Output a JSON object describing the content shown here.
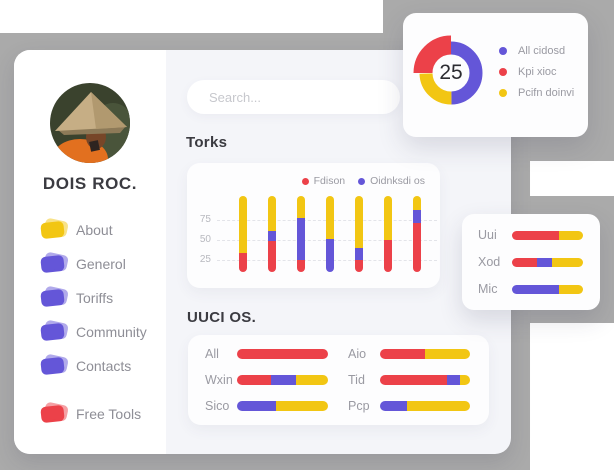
{
  "colors": {
    "red": "#ec4149",
    "purple": "#6456d8",
    "yellow": "#f2c613",
    "gray_bg": "#aaaaaa",
    "content_bg": "#f4f5f9",
    "card_bg": "#fdfdfe",
    "text_dark": "#3b3b41",
    "text_gray": "#8e8e96",
    "text_light": "#9a9aa2",
    "tick_gray": "#b8b9bf",
    "placeholder": "#c7c8cd",
    "grid": "#e3e4e9"
  },
  "sidebar": {
    "name": "DOIS ROC.",
    "items": [
      {
        "label": "About",
        "color_key": "yellow"
      },
      {
        "label": "Generol",
        "color_key": "purple"
      },
      {
        "label": "Toriffs",
        "color_key": "purple"
      },
      {
        "label": "Community",
        "color_key": "purple"
      },
      {
        "label": "Contacts",
        "color_key": "purple"
      },
      {
        "label": "Free Tools",
        "color_key": "red"
      }
    ]
  },
  "search": {
    "placeholder": "Search..."
  },
  "chart_data": [
    {
      "id": "donut",
      "type": "pie",
      "center_label": "25",
      "legend": [
        {
          "name": "All cidosd",
          "color_key": "purple"
        },
        {
          "name": "Kpi xioc",
          "color_key": "red"
        },
        {
          "name": "Pcifn doinvi",
          "color_key": "yellow"
        }
      ],
      "arcs": [
        {
          "color_key": "purple",
          "from": 0,
          "to": 50
        },
        {
          "color_key": "yellow",
          "from": 50,
          "to": 75
        },
        {
          "color_key": "red",
          "from": 75,
          "to": 100,
          "emphasized": true
        }
      ]
    },
    {
      "id": "torks",
      "type": "bar",
      "title": "Torks",
      "stacked": true,
      "legend": [
        {
          "name": "Fdison",
          "color_key": "red"
        },
        {
          "name": "Oidnksdi os",
          "color_key": "purple"
        }
      ],
      "yticks": [
        75,
        50,
        25
      ],
      "bars": [
        {
          "red": 25,
          "purple": 0,
          "yellow": 75
        },
        {
          "red": 41,
          "purple": 13,
          "yellow": 46
        },
        {
          "red": 16,
          "purple": 55,
          "yellow": 29
        },
        {
          "red": 0,
          "purple": 43,
          "yellow": 57
        },
        {
          "red": 16,
          "purple": 16,
          "yellow": 68
        },
        {
          "red": 42,
          "purple": 0,
          "yellow": 58
        },
        {
          "red": 65,
          "purple": 17,
          "yellow": 18
        }
      ]
    },
    {
      "id": "mini",
      "type": "hbar",
      "rows": [
        {
          "label": "Uui",
          "segments": [
            {
              "color_key": "red",
              "pct": 66
            },
            {
              "color_key": "yellow",
              "pct": 34
            }
          ]
        },
        {
          "label": "Xod",
          "segments": [
            {
              "color_key": "red",
              "pct": 35
            },
            {
              "color_key": "purple",
              "pct": 21
            },
            {
              "color_key": "yellow",
              "pct": 44
            }
          ]
        },
        {
          "label": "Mic",
          "segments": [
            {
              "color_key": "purple",
              "pct": 66
            },
            {
              "color_key": "yellow",
              "pct": 34
            }
          ]
        }
      ]
    },
    {
      "id": "uuci",
      "type": "hbar",
      "title": "UUCI OS.",
      "columns": [
        [
          {
            "label": "All",
            "segments": [
              {
                "color_key": "red",
                "pct": 100
              }
            ]
          },
          {
            "label": "Wxin",
            "segments": [
              {
                "color_key": "red",
                "pct": 37
              },
              {
                "color_key": "purple",
                "pct": 28
              },
              {
                "color_key": "yellow",
                "pct": 35
              }
            ]
          },
          {
            "label": "Sico",
            "segments": [
              {
                "color_key": "purple",
                "pct": 43
              },
              {
                "color_key": "yellow",
                "pct": 57
              }
            ]
          }
        ],
        [
          {
            "label": "Aio",
            "segments": [
              {
                "color_key": "red",
                "pct": 50
              },
              {
                "color_key": "yellow",
                "pct": 50
              }
            ]
          },
          {
            "label": "Tid",
            "segments": [
              {
                "color_key": "red",
                "pct": 74
              },
              {
                "color_key": "purple",
                "pct": 15
              },
              {
                "color_key": "yellow",
                "pct": 11
              }
            ]
          },
          {
            "label": "Pcp",
            "segments": [
              {
                "color_key": "purple",
                "pct": 30
              },
              {
                "color_key": "yellow",
                "pct": 70
              }
            ]
          }
        ]
      ]
    }
  ]
}
